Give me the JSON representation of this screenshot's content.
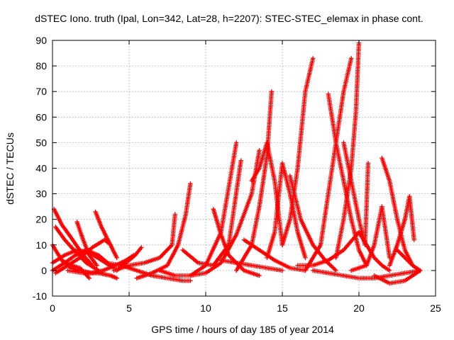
{
  "chart_data": {
    "type": "scatter",
    "title": "dSTEC Iono. truth (Ipal, Lon=342, Lat=28, h=2207): STEC-STEC_elemax in phase cont.",
    "xlabel": "GPS time / hours of day 185 of year 2014",
    "ylabel": "dSTEC  / TECUs",
    "xlim": [
      0,
      25
    ],
    "ylim": [
      -10,
      90
    ],
    "xticks": [
      0,
      5,
      10,
      15,
      20,
      25
    ],
    "yticks": [
      -10,
      0,
      10,
      20,
      30,
      40,
      50,
      60,
      70,
      80,
      90
    ],
    "grid": true,
    "marker": "plus",
    "color": "#ff0000",
    "arcs": [
      {
        "x": [
          0.0,
          0.6,
          1.2,
          1.8,
          2.6
        ],
        "y": [
          10,
          4,
          1,
          0,
          -1
        ]
      },
      {
        "x": [
          0.1,
          0.6,
          1.2,
          2.0,
          2.6
        ],
        "y": [
          24,
          18,
          13,
          6,
          2
        ]
      },
      {
        "x": [
          0.2,
          0.8,
          1.4,
          2.2,
          3.0
        ],
        "y": [
          17,
          12,
          8,
          3,
          0
        ]
      },
      {
        "x": [
          0.0,
          0.8,
          1.5,
          2.2,
          3.0,
          3.6
        ],
        "y": [
          0,
          3,
          6,
          8,
          6,
          3
        ]
      },
      {
        "x": [
          0.0,
          0.8,
          1.6,
          2.4,
          3.2,
          4.0
        ],
        "y": [
          3,
          6,
          8,
          7,
          4,
          1
        ]
      },
      {
        "x": [
          0.2,
          1.0,
          1.8,
          2.6,
          3.4,
          3.8
        ],
        "y": [
          -1,
          2,
          5,
          9,
          12,
          10
        ]
      },
      {
        "x": [
          0.6,
          1.2,
          1.8,
          2.4
        ],
        "y": [
          4,
          2,
          1,
          -3
        ]
      },
      {
        "x": [
          1.6,
          2.0,
          2.4,
          2.9
        ],
        "y": [
          19,
          12,
          6,
          2
        ]
      },
      {
        "x": [
          2.8,
          3.2,
          3.7,
          4.2
        ],
        "y": [
          23,
          17,
          11,
          5
        ]
      },
      {
        "x": [
          1.0,
          2.0,
          3.0,
          3.8,
          4.2
        ],
        "y": [
          0,
          -1,
          -1,
          -2,
          -3
        ]
      },
      {
        "x": [
          2.5,
          3.3,
          4.1,
          4.8,
          5.3
        ],
        "y": [
          -1,
          0,
          2,
          4,
          6
        ]
      },
      {
        "x": [
          3.5,
          4.5,
          5.5,
          6.5,
          7.5,
          8.5,
          9.0
        ],
        "y": [
          3,
          2,
          0,
          -2,
          -3,
          -4,
          -4
        ]
      },
      {
        "x": [
          4.2,
          4.8,
          5.4,
          5.8
        ],
        "y": [
          0,
          3,
          6,
          9
        ]
      },
      {
        "x": [
          4.0,
          5.0,
          6.0,
          7.0,
          7.8,
          8.0
        ],
        "y": [
          0,
          2,
          3,
          5,
          10,
          22
        ]
      },
      {
        "x": [
          5.5,
          6.5,
          7.5,
          8.2,
          8.7,
          9.0
        ],
        "y": [
          -3,
          -1,
          2,
          10,
          22,
          34
        ]
      },
      {
        "x": [
          7.0,
          8.0,
          9.0,
          10.0,
          11.0,
          12.0
        ],
        "y": [
          0,
          -2,
          -2,
          2,
          15,
          50
        ]
      },
      {
        "x": [
          8.5,
          9.5,
          10.5,
          11.5,
          12.3
        ],
        "y": [
          8,
          3,
          2,
          10,
          43
        ]
      },
      {
        "x": [
          9.0,
          10.0,
          11.0,
          12.0,
          13.0,
          13.5
        ],
        "y": [
          -2,
          -1,
          3,
          14,
          30,
          47
        ]
      },
      {
        "x": [
          10.5,
          11.0,
          11.5,
          12.5,
          13.5
        ],
        "y": [
          24,
          14,
          6,
          0,
          -2
        ]
      },
      {
        "x": [
          12.0,
          13.0,
          13.5,
          14.0,
          14.3
        ],
        "y": [
          0,
          10,
          25,
          45,
          70
        ]
      },
      {
        "x": [
          13.0,
          13.5,
          14.0,
          14.5,
          15.0
        ],
        "y": [
          35,
          40,
          50,
          35,
          10
        ]
      },
      {
        "x": [
          12.5,
          13.5,
          14.5,
          15.5,
          16.5
        ],
        "y": [
          12,
          8,
          4,
          1,
          0
        ]
      },
      {
        "x": [
          11.0,
          12.0,
          13.0,
          14.0,
          15.0
        ],
        "y": [
          4,
          3,
          2,
          1,
          0
        ]
      },
      {
        "x": [
          14.0,
          14.5,
          15.0,
          15.5,
          16.0,
          16.5
        ],
        "y": [
          5,
          15,
          42,
          30,
          15,
          5
        ]
      },
      {
        "x": [
          15.0,
          15.5,
          16.0,
          16.5,
          17.0
        ],
        "y": [
          10,
          20,
          40,
          70,
          83
        ]
      },
      {
        "x": [
          15.5,
          16.2,
          17.0,
          17.8,
          18.5
        ],
        "y": [
          37,
          20,
          10,
          4,
          0
        ]
      },
      {
        "x": [
          16.0,
          17.0,
          18.0,
          19.0,
          20.0
        ],
        "y": [
          2,
          2,
          4,
          8,
          15
        ]
      },
      {
        "x": [
          16.5,
          17.5,
          18.0,
          18.5,
          19.0,
          19.5
        ],
        "y": [
          0,
          10,
          30,
          50,
          70,
          83
        ]
      },
      {
        "x": [
          18.0,
          18.5,
          19.0,
          19.5,
          20.0,
          20.5
        ],
        "y": [
          69,
          50,
          35,
          20,
          8,
          2
        ]
      },
      {
        "x": [
          18.5,
          19.0,
          19.5,
          19.8,
          20.0
        ],
        "y": [
          5,
          20,
          40,
          62,
          89
        ]
      },
      {
        "x": [
          19.0,
          19.5,
          20.0,
          20.4,
          20.6
        ],
        "y": [
          50,
          35,
          20,
          10,
          42
        ]
      },
      {
        "x": [
          20.0,
          20.5,
          21.0,
          21.5,
          22.0
        ],
        "y": [
          15,
          10,
          5,
          2,
          0
        ]
      },
      {
        "x": [
          19.5,
          20.5,
          21.0,
          21.5,
          22.0
        ],
        "y": [
          0,
          2,
          10,
          25,
          5
        ]
      },
      {
        "x": [
          21.5,
          22.0,
          22.5,
          23.0,
          23.5
        ],
        "y": [
          44,
          35,
          20,
          8,
          2
        ]
      },
      {
        "x": [
          22.0,
          22.5,
          23.0,
          23.3,
          23.6
        ],
        "y": [
          2,
          10,
          20,
          29,
          12
        ]
      },
      {
        "x": [
          21.0,
          22.0,
          23.0,
          23.5,
          24.0
        ],
        "y": [
          -2,
          -5,
          -4,
          -2,
          0
        ]
      },
      {
        "x": [
          22.5,
          23.0,
          23.5,
          24.0
        ],
        "y": [
          8,
          5,
          2,
          0
        ]
      },
      {
        "x": [
          17.0,
          18.0,
          19.0,
          20.0,
          21.0,
          22.0,
          23.0,
          24.0
        ],
        "y": [
          0,
          -1,
          -2,
          -3,
          -3,
          -2,
          -1,
          0
        ]
      }
    ]
  }
}
